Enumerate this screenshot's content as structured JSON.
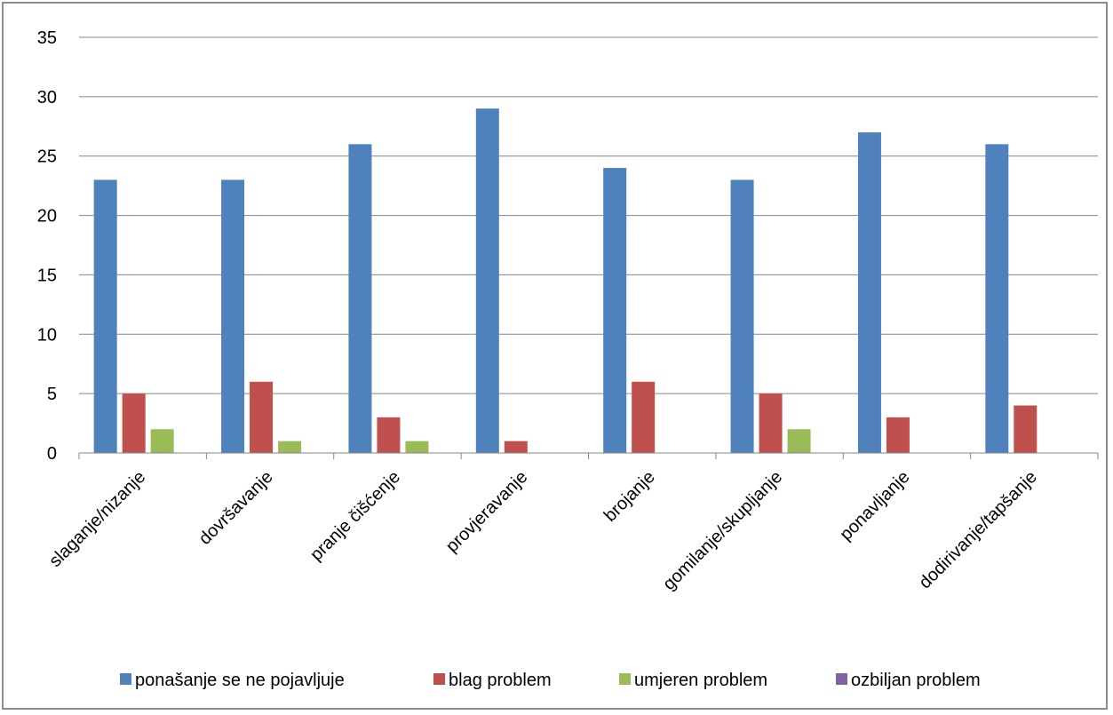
{
  "chart_data": {
    "type": "bar",
    "categories": [
      "slaganje/nizanje",
      "dovršavanje",
      "pranje čišćenje",
      "provjeravanje",
      "brojanje",
      "gomilanje/skupljanje",
      "ponavljanje",
      "dodirivanje/tapšanje"
    ],
    "series": [
      {
        "name": "ponašanje se ne pojavljuje",
        "color": "#4f81bd",
        "values": [
          23,
          23,
          26,
          29,
          24,
          23,
          27,
          26
        ]
      },
      {
        "name": "blag problem",
        "color": "#c0504d",
        "values": [
          5,
          6,
          3,
          1,
          6,
          5,
          3,
          4
        ]
      },
      {
        "name": "umjeren problem",
        "color": "#9bbb59",
        "values": [
          2,
          1,
          1,
          0,
          0,
          2,
          0,
          0
        ]
      },
      {
        "name": "ozbiljan problem",
        "color": "#8064a2",
        "values": [
          0,
          0,
          0,
          0,
          0,
          0,
          0,
          0
        ]
      }
    ],
    "yticks": [
      "0",
      "5",
      "10",
      "15",
      "20",
      "25",
      "30",
      "35"
    ],
    "ylim": [
      0,
      35
    ],
    "grid": true,
    "legend_position": "bottom"
  }
}
